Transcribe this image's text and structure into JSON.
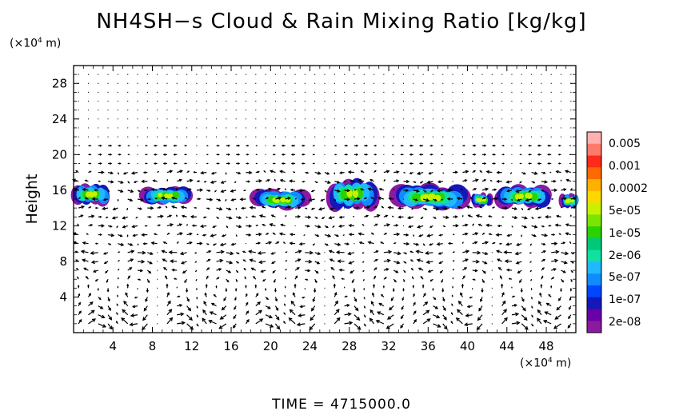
{
  "title": "NH4SH−s Cloud & Rain Mixing Ratio [kg/kg]",
  "time_label": "TIME  =  4715000.0",
  "y_unit": "(×10",
  "y_unit_exp": "4",
  "y_unit_tail": " m)",
  "x_unit": "(×10",
  "x_unit_exp": "4",
  "x_unit_tail": " m)",
  "chart_data": {
    "type": "heatmap",
    "ylabel": "Height",
    "xlabel": "",
    "xlim": [
      0,
      51
    ],
    "ylim": [
      0,
      30
    ],
    "x_ticks": [
      "4",
      "8",
      "12",
      "16",
      "20",
      "24",
      "28",
      "32",
      "36",
      "40",
      "44",
      "48"
    ],
    "y_ticks": [
      "4",
      "8",
      "12",
      "16",
      "20",
      "24",
      "28"
    ],
    "x_tick_values": [
      4,
      8,
      12,
      16,
      20,
      24,
      28,
      32,
      36,
      40,
      44,
      48
    ],
    "y_tick_values": [
      4,
      8,
      12,
      16,
      20,
      24,
      28
    ],
    "colorbar": {
      "labels": [
        "0.005",
        "0.001",
        "0.0002",
        "5e-05",
        "1e-05",
        "2e-06",
        "5e-07",
        "1e-07",
        "2e-08"
      ],
      "colors": [
        "#ffb0b0",
        "#ff7a6a",
        "#ff2a1a",
        "#ff6a00",
        "#ffb000",
        "#ffd800",
        "#c8f000",
        "#78e600",
        "#2ad200",
        "#00c878",
        "#10e0a0",
        "#20b8ff",
        "#108cff",
        "#0046ff",
        "#1418b8",
        "#6a00a8",
        "#8c1aa0"
      ]
    },
    "cloud_regions": [
      {
        "x_center": 1.8,
        "z_center": 15.5,
        "width": 3.6,
        "height": 2.2
      },
      {
        "x_center": 9.5,
        "z_center": 15.4,
        "width": 4.6,
        "height": 1.9
      },
      {
        "x_center": 21.0,
        "z_center": 14.9,
        "width": 5.2,
        "height": 2.0
      },
      {
        "x_center": 28.3,
        "z_center": 15.6,
        "width": 4.6,
        "height": 3.2
      },
      {
        "x_center": 36.2,
        "z_center": 15.2,
        "width": 7.8,
        "height": 2.6
      },
      {
        "x_center": 41.4,
        "z_center": 14.9,
        "width": 1.8,
        "height": 1.4
      },
      {
        "x_center": 45.8,
        "z_center": 15.3,
        "width": 5.2,
        "height": 2.3
      },
      {
        "x_center": 50.4,
        "z_center": 14.8,
        "width": 1.4,
        "height": 1.6
      }
    ]
  }
}
